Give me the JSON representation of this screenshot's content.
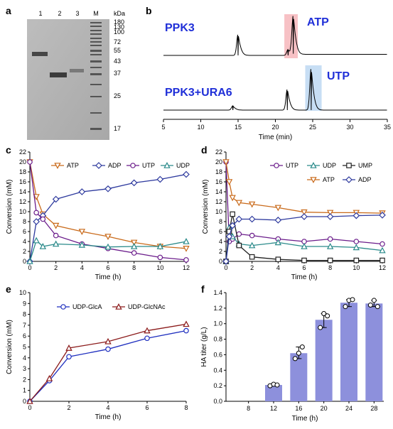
{
  "panel_labels": [
    "a",
    "b",
    "c",
    "d",
    "e",
    "f"
  ],
  "gel": {
    "lane_labels": [
      "1",
      "2",
      "3",
      "M"
    ],
    "unit": "kDa",
    "markers": [
      "180",
      "130",
      "100",
      "72",
      "55",
      "43",
      "37",
      "25",
      "17"
    ]
  },
  "chart_data": [
    {
      "panel": "b",
      "type": "line",
      "xlabel": "Time (min)",
      "xlim": [
        5,
        35
      ],
      "xticks": [
        5,
        10,
        15,
        20,
        25,
        30,
        35
      ],
      "traces": [
        {
          "name": "PPK3",
          "peak_label": "ATP",
          "peaks": [
            {
              "x": 15.0,
              "h": 0.55
            },
            {
              "x": 21.7,
              "h": 0.15
            },
            {
              "x": 22.4,
              "h": 1.0
            }
          ]
        },
        {
          "name": "PPK3+URA6",
          "peak_label": "UTP",
          "peaks": [
            {
              "x": 14.3,
              "h": 0.1
            },
            {
              "x": 21.6,
              "h": 0.5
            },
            {
              "x": 24.8,
              "h": 1.0
            }
          ]
        }
      ],
      "highlight_colors": [
        "#f2a0a6",
        "#a9cdee"
      ]
    },
    {
      "panel": "c",
      "type": "line",
      "xlabel": "Time (h)",
      "ylabel": "Conversion (mM)",
      "xlim": [
        0,
        12
      ],
      "ylim": [
        0,
        22
      ],
      "xticks": [
        0,
        2,
        4,
        6,
        8,
        10,
        12
      ],
      "yticks": [
        0,
        2,
        4,
        6,
        8,
        10,
        12,
        14,
        16,
        18,
        20,
        22
      ],
      "x": [
        0,
        0.5,
        1,
        2,
        4,
        6,
        8,
        10,
        12
      ],
      "series": [
        {
          "name": "ATP",
          "marker": "tri-down",
          "color": "#c96a1a",
          "values": [
            20,
            13,
            9.5,
            7.2,
            6.0,
            5.0,
            3.8,
            3.0,
            2.6
          ]
        },
        {
          "name": "ADP",
          "marker": "diamond",
          "color": "#2e3a9e",
          "values": [
            0,
            8.0,
            9.2,
            12.5,
            14.0,
            14.6,
            15.8,
            16.5,
            17.5
          ]
        },
        {
          "name": "UTP",
          "marker": "circle",
          "color": "#6a1b8a",
          "values": [
            20,
            9.8,
            8.5,
            5.2,
            3.5,
            2.6,
            1.7,
            0.8,
            0.3
          ]
        },
        {
          "name": "UDP",
          "marker": "tri-up",
          "color": "#2a8a8a",
          "values": [
            0,
            4.2,
            3.0,
            3.5,
            3.3,
            2.9,
            3.0,
            3.0,
            4.0
          ]
        }
      ]
    },
    {
      "panel": "d",
      "type": "line",
      "xlabel": "Time (h)",
      "ylabel": "Conversion (mM)",
      "xlim": [
        0,
        12
      ],
      "ylim": [
        0,
        22
      ],
      "xticks": [
        0,
        2,
        4,
        6,
        8,
        10,
        12
      ],
      "yticks": [
        0,
        2,
        4,
        6,
        8,
        10,
        12,
        14,
        16,
        18,
        20,
        22
      ],
      "x": [
        0,
        0.25,
        0.5,
        1,
        2,
        4,
        6,
        8,
        10,
        12
      ],
      "series": [
        {
          "name": "UTP",
          "marker": "circle",
          "color": "#6a1b8a",
          "values": [
            20,
            4.0,
            4.5,
            5.5,
            5.2,
            4.5,
            4.0,
            4.5,
            4.0,
            3.5
          ]
        },
        {
          "name": "UDP",
          "marker": "tri-up",
          "color": "#2a8a8a",
          "values": [
            0,
            6.8,
            5.0,
            3.5,
            3.2,
            3.8,
            3.0,
            3.0,
            2.8,
            2.2
          ]
        },
        {
          "name": "UMP",
          "marker": "square",
          "color": "#222222",
          "values": [
            0,
            6.0,
            9.5,
            3.2,
            0.9,
            0.4,
            0.2,
            0.2,
            0.2,
            0.2
          ]
        },
        {
          "name": "ATP",
          "marker": "tri-down",
          "color": "#c96a1a",
          "values": [
            20,
            16.0,
            12.8,
            11.8,
            11.5,
            10.8,
            9.9,
            9.8,
            9.8,
            9.7
          ]
        },
        {
          "name": "ADP",
          "marker": "diamond",
          "color": "#2e3a9e",
          "values": [
            0,
            5.0,
            7.2,
            8.5,
            8.5,
            8.3,
            9.0,
            9.0,
            9.2,
            9.3
          ]
        }
      ]
    },
    {
      "panel": "e",
      "type": "line",
      "xlabel": "Time (h)",
      "ylabel": "Conversion (mM)",
      "xlim": [
        0,
        8
      ],
      "ylim": [
        0,
        10
      ],
      "xticks": [
        0,
        2,
        4,
        6,
        8
      ],
      "yticks": [
        0,
        1,
        2,
        3,
        4,
        5,
        6,
        7,
        8,
        9,
        10
      ],
      "x": [
        0,
        1,
        2,
        4,
        6,
        8
      ],
      "series": [
        {
          "name": "UDP-GlcA",
          "marker": "circle",
          "color": "#1f2fbf",
          "values": [
            0,
            1.9,
            4.1,
            4.8,
            5.8,
            6.5
          ]
        },
        {
          "name": "UDP-GlcNAc",
          "marker": "tri-up",
          "color": "#8b1a1a",
          "values": [
            0,
            2.1,
            4.9,
            5.5,
            6.5,
            7.1
          ]
        }
      ]
    },
    {
      "panel": "f",
      "type": "bar",
      "xlabel": "Time (h)",
      "ylabel": "HA titer (g/L)",
      "categories": [
        "8",
        "12",
        "16",
        "20",
        "24",
        "28"
      ],
      "values": [
        0,
        0.21,
        0.62,
        1.05,
        1.27,
        1.26
      ],
      "replicates": [
        [],
        [
          0.2,
          0.22,
          0.21
        ],
        [
          0.55,
          0.62,
          0.7
        ],
        [
          0.95,
          1.13,
          1.1
        ],
        [
          1.22,
          1.3,
          1.31
        ],
        [
          1.24,
          1.3,
          1.22
        ]
      ],
      "ylim": [
        0,
        1.4
      ],
      "yticks": [
        "0.0",
        "0.2",
        "0.4",
        "0.6",
        "0.8",
        "1.0",
        "1.2",
        "1.4"
      ],
      "bar_color": "#8d90dc"
    }
  ]
}
